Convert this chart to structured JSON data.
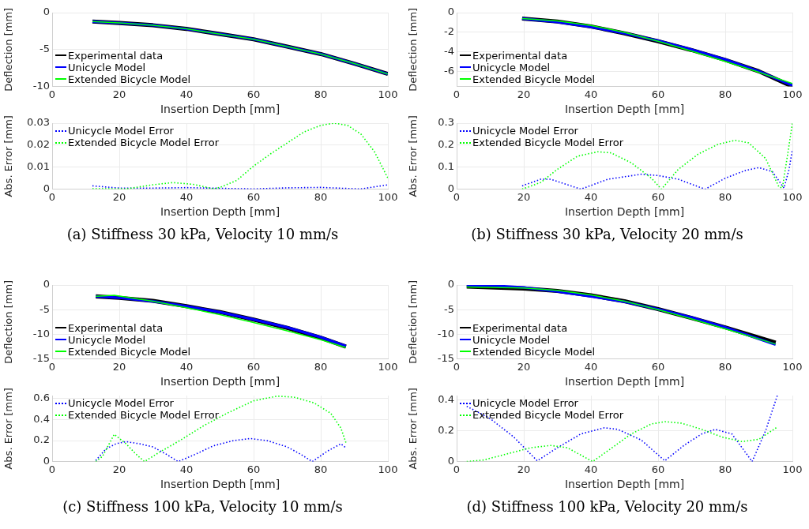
{
  "chart_data": [
    {
      "type": "line",
      "xlabel": "Insertion Depth [mm]",
      "ylabel": "Deflection [mm]",
      "xlim": [
        0,
        100
      ],
      "xticks": [
        0,
        20,
        40,
        60,
        80,
        100
      ],
      "ylim": [
        -10,
        0
      ],
      "yticks": [
        -10,
        -5,
        0
      ],
      "grid": true,
      "legend": "bottom left",
      "line_style": "solid",
      "marker": "none",
      "series": [
        {
          "name": "Experimental data",
          "color": "#000000",
          "x": [
            12,
            20,
            30,
            40,
            50,
            60,
            70,
            80,
            90,
            100
          ],
          "values": [
            -1.2,
            -1.4,
            -1.7,
            -2.2,
            -2.9,
            -3.6,
            -4.6,
            -5.6,
            -6.9,
            -8.3
          ]
        },
        {
          "name": "Unicycle Model",
          "color": "#0000ff",
          "x": [
            12,
            20,
            30,
            40,
            50,
            60,
            70,
            80,
            90,
            100
          ],
          "values": [
            -1.2,
            -1.4,
            -1.7,
            -2.2,
            -2.9,
            -3.6,
            -4.6,
            -5.6,
            -6.9,
            -8.3
          ]
        },
        {
          "name": "Extended Bicycle Model",
          "color": "#00ff00",
          "x": [
            12,
            20,
            30,
            40,
            50,
            60,
            70,
            80,
            90,
            100
          ],
          "values": [
            -1.2,
            -1.4,
            -1.7,
            -2.2,
            -2.9,
            -3.6,
            -4.6,
            -5.6,
            -6.9,
            -8.3
          ]
        }
      ]
    },
    {
      "type": "line",
      "xlabel": "Insertion Depth [mm]",
      "ylabel": "Abs. Error [mm]",
      "xlim": [
        0,
        100
      ],
      "xticks": [
        0,
        20,
        40,
        60,
        80,
        100
      ],
      "ylim": [
        0,
        0.03
      ],
      "yticks": [
        0,
        0.01,
        0.02,
        0.03
      ],
      "grid": true,
      "legend": "top left",
      "line_style": "dotted",
      "marker": "none",
      "annotations": [
        "(a) Stiffness 30 kPa, Velocity 10 mm/s"
      ],
      "series": [
        {
          "name": "Unicycle Model Error",
          "color": "#0000ff",
          "x": [
            12,
            20,
            30,
            40,
            50,
            60,
            70,
            80,
            90,
            92,
            100
          ],
          "values": [
            0.0015,
            0.0005,
            0.0005,
            0.0007,
            0.0004,
            0.0001,
            0.0006,
            0.0008,
            0.0002,
            0.0001,
            0.002
          ]
        },
        {
          "name": "Extended Bicycle Model Error",
          "color": "#00ff00",
          "x": [
            12,
            20,
            22,
            30,
            36,
            42,
            48,
            50,
            55,
            60,
            65,
            70,
            75,
            80,
            84,
            88,
            92,
            96,
            100
          ],
          "values": [
            0.0002,
            0.0002,
            0.0001,
            0.002,
            0.003,
            0.0022,
            0.0002,
            0.0008,
            0.004,
            0.0105,
            0.016,
            0.021,
            0.026,
            0.029,
            0.03,
            0.029,
            0.025,
            0.017,
            0.005
          ]
        }
      ]
    },
    {
      "type": "line",
      "xlabel": "Insertion Depth [mm]",
      "ylabel": "Deflection [mm]",
      "xlim": [
        0,
        100
      ],
      "xticks": [
        0,
        20,
        40,
        60,
        80,
        100
      ],
      "ylim": [
        -7.5,
        0
      ],
      "yticks": [
        -6,
        -4,
        -2,
        0
      ],
      "grid": true,
      "legend": "bottom left",
      "line_style": "solid",
      "marker": "none",
      "series": [
        {
          "name": "Experimental data",
          "color": "#000000",
          "x": [
            19.5,
            30,
            40,
            50,
            60,
            70,
            80,
            90,
            100
          ],
          "values": [
            -0.6,
            -0.9,
            -1.4,
            -2.1,
            -2.9,
            -3.8,
            -4.8,
            -5.95,
            -7.5
          ]
        },
        {
          "name": "Unicycle Model",
          "color": "#0000ff",
          "x": [
            19.5,
            30,
            40,
            50,
            60,
            70,
            80,
            90,
            100
          ],
          "values": [
            -0.6,
            -0.95,
            -1.45,
            -2.1,
            -2.85,
            -3.75,
            -4.75,
            -5.95,
            -7.4
          ]
        },
        {
          "name": "Extended Bicycle Model",
          "color": "#00ff00",
          "x": [
            19.5,
            30,
            40,
            50,
            60,
            70,
            80,
            90,
            100
          ],
          "values": [
            -0.6,
            -0.85,
            -1.3,
            -2.0,
            -2.9,
            -3.9,
            -4.95,
            -6.05,
            -7.2
          ]
        }
      ]
    },
    {
      "type": "line",
      "xlabel": "Insertion Depth [mm]",
      "ylabel": "Abs. Error [mm]",
      "xlim": [
        0,
        100
      ],
      "xticks": [
        0,
        20,
        40,
        60,
        80,
        100
      ],
      "ylim": [
        0,
        0.3
      ],
      "yticks": [
        0,
        0.1,
        0.2,
        0.3
      ],
      "grid": true,
      "legend": "top left",
      "line_style": "dotted",
      "marker": "none",
      "annotations": [
        "(b) Stiffness 30 kPa, Velocity 20 mm/s"
      ],
      "series": [
        {
          "name": "Unicycle Model Error",
          "color": "#0000ff",
          "x": [
            19.5,
            25,
            28,
            33,
            37,
            45,
            55,
            60,
            66,
            74,
            80,
            86,
            90,
            94,
            97.5,
            99,
            100
          ],
          "values": [
            0.015,
            0.045,
            0.045,
            0.02,
            0,
            0.045,
            0.068,
            0.062,
            0.045,
            0,
            0.05,
            0.085,
            0.098,
            0.08,
            0.005,
            0.09,
            0.18
          ]
        },
        {
          "name": "Extended Bicycle Model Error",
          "color": "#00ff00",
          "x": [
            19.5,
            25,
            30,
            36,
            42,
            46,
            52,
            58,
            61,
            66,
            72,
            78,
            83,
            87,
            92,
            96,
            97,
            98.5,
            100
          ],
          "values": [
            0,
            0.03,
            0.09,
            0.15,
            0.17,
            0.165,
            0.12,
            0.05,
            0,
            0.09,
            0.16,
            0.205,
            0.222,
            0.21,
            0.14,
            0.01,
            0.005,
            0.15,
            0.3
          ]
        }
      ]
    },
    {
      "type": "line",
      "xlabel": "Insertion Depth [mm]",
      "ylabel": "Deflection [mm]",
      "xlim": [
        0,
        100
      ],
      "xticks": [
        0,
        20,
        40,
        60,
        80,
        100
      ],
      "ylim": [
        -15,
        0
      ],
      "yticks": [
        -15,
        -10,
        -5,
        0
      ],
      "grid": true,
      "legend": "bottom left",
      "line_style": "solid",
      "marker": "none",
      "series": [
        {
          "name": "Experimental data",
          "color": "#000000",
          "x": [
            13,
            20,
            30,
            40,
            50,
            60,
            70,
            80,
            87.5
          ],
          "values": [
            -2.3,
            -2.6,
            -3.2,
            -4.3,
            -5.5,
            -7.0,
            -8.7,
            -10.7,
            -12.5
          ]
        },
        {
          "name": "Unicycle Model",
          "color": "#0000ff",
          "x": [
            13,
            20,
            30,
            40,
            50,
            60,
            70,
            80,
            87.5
          ],
          "values": [
            -2.3,
            -2.6,
            -3.3,
            -4.3,
            -5.5,
            -7.0,
            -8.6,
            -10.6,
            -12.4
          ]
        },
        {
          "name": "Extended Bicycle Model",
          "color": "#00ff00",
          "x": [
            13,
            18.5,
            30,
            40,
            50,
            60,
            70,
            80,
            87.5
          ],
          "values": [
            -2.3,
            -2.1,
            -3.3,
            -4.6,
            -6.0,
            -7.6,
            -9.3,
            -11.1,
            -12.7
          ]
        }
      ]
    },
    {
      "type": "line",
      "xlabel": "Insertion Depth [mm]",
      "ylabel": "Abs. Error [mm]",
      "xlim": [
        0,
        100
      ],
      "xticks": [
        0,
        20,
        40,
        60,
        80,
        100
      ],
      "ylim": [
        0,
        0.63
      ],
      "yticks": [
        0,
        0.2,
        0.4,
        0.6
      ],
      "grid": true,
      "legend": "top left",
      "line_style": "dotted",
      "marker": "none",
      "annotations": [
        "(c) Stiffness 100 kPa, Velocity 10 mm/s"
      ],
      "series": [
        {
          "name": "Unicycle Model Error",
          "color": "#0000ff",
          "x": [
            13,
            16,
            19,
            22,
            26,
            30,
            34,
            37.5,
            42,
            48,
            54,
            59,
            64,
            70,
            74,
            77.5,
            82,
            86,
            87.5
          ],
          "values": [
            0.01,
            0.12,
            0.17,
            0.19,
            0.17,
            0.14,
            0.07,
            0,
            0.06,
            0.15,
            0.2,
            0.22,
            0.2,
            0.14,
            0.07,
            0,
            0.1,
            0.17,
            0.13
          ]
        },
        {
          "name": "Extended Bicycle Model Error",
          "color": "#00ff00",
          "x": [
            13,
            15,
            18.5,
            22,
            25,
            27.5,
            32,
            38,
            45,
            52,
            60,
            67,
            72,
            78,
            83,
            86,
            87.5
          ],
          "values": [
            0,
            0.05,
            0.26,
            0.17,
            0.07,
            0,
            0.09,
            0.2,
            0.34,
            0.46,
            0.58,
            0.625,
            0.615,
            0.56,
            0.46,
            0.32,
            0.18
          ]
        }
      ]
    },
    {
      "type": "line",
      "xlabel": "Insertion Depth [mm]",
      "ylabel": "Deflection [mm]",
      "xlim": [
        0,
        100
      ],
      "xticks": [
        0,
        20,
        40,
        60,
        80,
        100
      ],
      "ylim": [
        -15,
        0
      ],
      "yticks": [
        -15,
        -10,
        -5,
        0
      ],
      "grid": true,
      "legend": "bottom left",
      "line_style": "solid",
      "marker": "none",
      "series": [
        {
          "name": "Experimental data",
          "color": "#000000",
          "x": [
            3,
            20,
            30,
            40,
            50,
            60,
            70,
            80,
            95
          ],
          "values": [
            -0.3,
            -0.7,
            -1.2,
            -2.1,
            -3.3,
            -4.9,
            -6.7,
            -8.6,
            -11.7
          ]
        },
        {
          "name": "Unicycle Model",
          "color": "#0000ff",
          "x": [
            3,
            10,
            20,
            30,
            40,
            50,
            60,
            70,
            80,
            95
          ],
          "values": [
            0,
            -0.1,
            -0.5,
            -1.3,
            -2.3,
            -3.4,
            -4.9,
            -6.6,
            -8.6,
            -12.1
          ]
        },
        {
          "name": "Extended Bicycle Model",
          "color": "#00ff00",
          "x": [
            3,
            20,
            30,
            40,
            50,
            60,
            70,
            80,
            95
          ],
          "values": [
            -0.4,
            -0.6,
            -1.1,
            -2.0,
            -3.3,
            -5.0,
            -6.9,
            -8.9,
            -12.0
          ]
        }
      ]
    },
    {
      "type": "line",
      "xlabel": "Insertion Depth [mm]",
      "ylabel": "Abs. Error [mm]",
      "xlim": [
        0,
        100
      ],
      "xticks": [
        0,
        20,
        40,
        60,
        80,
        100
      ],
      "ylim": [
        0,
        0.43
      ],
      "yticks": [
        0,
        0.2,
        0.4
      ],
      "grid": true,
      "legend": "top left",
      "line_style": "dotted",
      "marker": "none",
      "annotations": [
        "(d) Stiffness 100 kPa, Velocity 20 mm/s"
      ],
      "series": [
        {
          "name": "Unicycle Model Error",
          "color": "#0000ff",
          "x": [
            3,
            10,
            17,
            24,
            30,
            37,
            44,
            48,
            55,
            62,
            68,
            73,
            77,
            82,
            88,
            92,
            95.5
          ],
          "values": [
            0.36,
            0.28,
            0.16,
            0.005,
            0.09,
            0.18,
            0.22,
            0.21,
            0.14,
            0.005,
            0.11,
            0.18,
            0.21,
            0.18,
            0,
            0.2,
            0.43
          ]
        },
        {
          "name": "Extended Bicycle Model Error",
          "color": "#00ff00",
          "x": [
            3,
            8,
            15,
            22,
            28,
            33,
            38,
            40.5,
            45,
            52,
            58,
            62,
            67,
            73,
            79,
            85,
            90,
            95.5
          ],
          "values": [
            0,
            0.01,
            0.05,
            0.09,
            0.105,
            0.09,
            0.03,
            0,
            0.07,
            0.18,
            0.245,
            0.26,
            0.25,
            0.21,
            0.16,
            0.13,
            0.145,
            0.225
          ]
        }
      ]
    }
  ]
}
